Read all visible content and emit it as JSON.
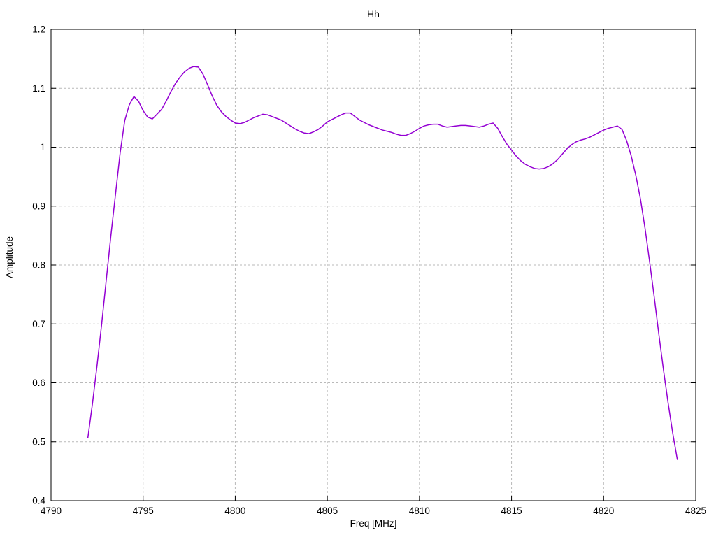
{
  "page": {
    "background": "#ffffff"
  },
  "chart_data": {
    "type": "line",
    "title": "Hh",
    "xlabel": "Freq [MHz]",
    "ylabel": "Amplitude",
    "xlim": [
      4790,
      4825
    ],
    "ylim": [
      0.4,
      1.2
    ],
    "grid": true,
    "legend_position": "none",
    "line_color": "#9400d3",
    "grid_color": "#b9b9b9",
    "axis_color": "#000000",
    "xticks": [
      {
        "value": 4790,
        "label": "4790"
      },
      {
        "value": 4795,
        "label": "4795"
      },
      {
        "value": 4800,
        "label": "4800"
      },
      {
        "value": 4805,
        "label": "4805"
      },
      {
        "value": 4810,
        "label": "4810"
      },
      {
        "value": 4815,
        "label": "4815"
      },
      {
        "value": 4820,
        "label": "4820"
      },
      {
        "value": 4825,
        "label": "4825"
      }
    ],
    "yticks": [
      {
        "value": 0.4,
        "label": "0.4"
      },
      {
        "value": 0.5,
        "label": "0.5"
      },
      {
        "value": 0.6,
        "label": "0.6"
      },
      {
        "value": 0.7,
        "label": "0.7"
      },
      {
        "value": 0.8,
        "label": "0.8"
      },
      {
        "value": 0.9,
        "label": "0.9"
      },
      {
        "value": 1.0,
        "label": "1"
      },
      {
        "value": 1.1,
        "label": "1.1"
      },
      {
        "value": 1.2,
        "label": "1.2"
      }
    ],
    "series": [
      {
        "name": "Hh",
        "points": [
          [
            4792.0,
            0.507
          ],
          [
            4792.25,
            0.565
          ],
          [
            4792.5,
            0.63
          ],
          [
            4792.75,
            0.7
          ],
          [
            4793.0,
            0.775
          ],
          [
            4793.25,
            0.85
          ],
          [
            4793.5,
            0.92
          ],
          [
            4793.75,
            0.99
          ],
          [
            4794.0,
            1.045
          ],
          [
            4794.25,
            1.072
          ],
          [
            4794.5,
            1.086
          ],
          [
            4794.75,
            1.078
          ],
          [
            4795.0,
            1.062
          ],
          [
            4795.25,
            1.051
          ],
          [
            4795.5,
            1.048
          ],
          [
            4795.75,
            1.056
          ],
          [
            4796.0,
            1.064
          ],
          [
            4796.25,
            1.078
          ],
          [
            4796.5,
            1.094
          ],
          [
            4796.75,
            1.108
          ],
          [
            4797.0,
            1.119
          ],
          [
            4797.25,
            1.128
          ],
          [
            4797.5,
            1.134
          ],
          [
            4797.75,
            1.137
          ],
          [
            4798.0,
            1.136
          ],
          [
            4798.25,
            1.124
          ],
          [
            4798.5,
            1.106
          ],
          [
            4798.75,
            1.087
          ],
          [
            4799.0,
            1.071
          ],
          [
            4799.25,
            1.06
          ],
          [
            4799.5,
            1.052
          ],
          [
            4799.75,
            1.046
          ],
          [
            4800.0,
            1.041
          ],
          [
            4800.25,
            1.04
          ],
          [
            4800.5,
            1.042
          ],
          [
            4800.75,
            1.046
          ],
          [
            4801.0,
            1.05
          ],
          [
            4801.25,
            1.053
          ],
          [
            4801.5,
            1.056
          ],
          [
            4801.75,
            1.055
          ],
          [
            4802.0,
            1.052
          ],
          [
            4802.25,
            1.049
          ],
          [
            4802.5,
            1.046
          ],
          [
            4802.75,
            1.041
          ],
          [
            4803.0,
            1.036
          ],
          [
            4803.25,
            1.031
          ],
          [
            4803.5,
            1.027
          ],
          [
            4803.75,
            1.024
          ],
          [
            4804.0,
            1.023
          ],
          [
            4804.25,
            1.026
          ],
          [
            4804.5,
            1.03
          ],
          [
            4804.75,
            1.036
          ],
          [
            4805.0,
            1.043
          ],
          [
            4805.25,
            1.047
          ],
          [
            4805.5,
            1.051
          ],
          [
            4805.75,
            1.055
          ],
          [
            4806.0,
            1.058
          ],
          [
            4806.25,
            1.058
          ],
          [
            4806.5,
            1.052
          ],
          [
            4806.75,
            1.046
          ],
          [
            4807.0,
            1.042
          ],
          [
            4807.25,
            1.038
          ],
          [
            4807.5,
            1.035
          ],
          [
            4807.75,
            1.032
          ],
          [
            4808.0,
            1.029
          ],
          [
            4808.25,
            1.027
          ],
          [
            4808.5,
            1.025
          ],
          [
            4808.75,
            1.022
          ],
          [
            4809.0,
            1.02
          ],
          [
            4809.25,
            1.02
          ],
          [
            4809.5,
            1.023
          ],
          [
            4809.75,
            1.027
          ],
          [
            4810.0,
            1.032
          ],
          [
            4810.25,
            1.036
          ],
          [
            4810.5,
            1.038
          ],
          [
            4810.75,
            1.039
          ],
          [
            4811.0,
            1.039
          ],
          [
            4811.25,
            1.036
          ],
          [
            4811.5,
            1.034
          ],
          [
            4811.75,
            1.035
          ],
          [
            4812.0,
            1.036
          ],
          [
            4812.25,
            1.037
          ],
          [
            4812.5,
            1.037
          ],
          [
            4812.75,
            1.036
          ],
          [
            4813.0,
            1.035
          ],
          [
            4813.25,
            1.034
          ],
          [
            4813.5,
            1.036
          ],
          [
            4813.75,
            1.039
          ],
          [
            4814.0,
            1.041
          ],
          [
            4814.25,
            1.032
          ],
          [
            4814.5,
            1.018
          ],
          [
            4814.75,
            1.005
          ],
          [
            4815.0,
            0.995
          ],
          [
            4815.25,
            0.985
          ],
          [
            4815.5,
            0.977
          ],
          [
            4815.75,
            0.971
          ],
          [
            4816.0,
            0.967
          ],
          [
            4816.25,
            0.964
          ],
          [
            4816.5,
            0.963
          ],
          [
            4816.75,
            0.964
          ],
          [
            4817.0,
            0.967
          ],
          [
            4817.25,
            0.972
          ],
          [
            4817.5,
            0.979
          ],
          [
            4817.75,
            0.988
          ],
          [
            4818.0,
            0.997
          ],
          [
            4818.25,
            1.004
          ],
          [
            4818.5,
            1.009
          ],
          [
            4818.75,
            1.012
          ],
          [
            4819.0,
            1.014
          ],
          [
            4819.25,
            1.017
          ],
          [
            4819.5,
            1.021
          ],
          [
            4819.75,
            1.025
          ],
          [
            4820.0,
            1.029
          ],
          [
            4820.25,
            1.032
          ],
          [
            4820.5,
            1.034
          ],
          [
            4820.75,
            1.036
          ],
          [
            4821.0,
            1.03
          ],
          [
            4821.25,
            1.011
          ],
          [
            4821.5,
            0.985
          ],
          [
            4821.75,
            0.952
          ],
          [
            4822.0,
            0.912
          ],
          [
            4822.25,
            0.862
          ],
          [
            4822.5,
            0.805
          ],
          [
            4822.75,
            0.745
          ],
          [
            4823.0,
            0.682
          ],
          [
            4823.25,
            0.622
          ],
          [
            4823.5,
            0.566
          ],
          [
            4823.75,
            0.515
          ],
          [
            4824.0,
            0.47
          ]
        ]
      }
    ]
  }
}
